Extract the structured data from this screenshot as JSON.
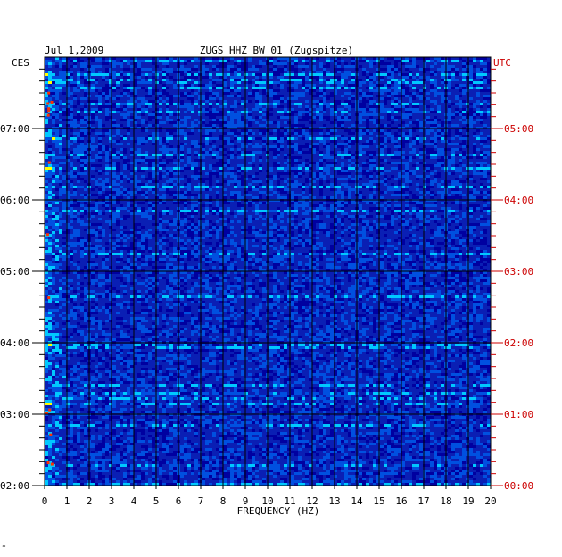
{
  "chart_data": {
    "type": "heatmap",
    "title_left": "Jul 1,2009",
    "title_center": "ZUGS HHZ BW 01 (Zugspitze)",
    "left_tz_label": "CES",
    "right_tz_label": "UTC",
    "xlabel": "FREQUENCY (HZ)",
    "xlim": [
      0,
      20
    ],
    "x_ticks": [
      "0",
      "1",
      "2",
      "3",
      "4",
      "5",
      "6",
      "7",
      "8",
      "9",
      "10",
      "11",
      "12",
      "13",
      "14",
      "15",
      "16",
      "17",
      "18",
      "19",
      "20"
    ],
    "y_left_ticks": [
      "02:00",
      "03:00",
      "04:00",
      "05:00",
      "06:00",
      "07:00"
    ],
    "y_right_ticks": [
      "00:00",
      "01:00",
      "02:00",
      "03:00",
      "04:00",
      "05:00"
    ],
    "time_span_hours": [
      0,
      6
    ],
    "colors": {
      "background": "#0a1fb4",
      "grid": "#000000",
      "left_axis_text": "#000000",
      "right_axis_text": "#cc0000",
      "low": "#0000a0",
      "mid": "#00c8ff",
      "high": "#ffff00",
      "peak": "#ff3000"
    },
    "note_char": "*"
  }
}
